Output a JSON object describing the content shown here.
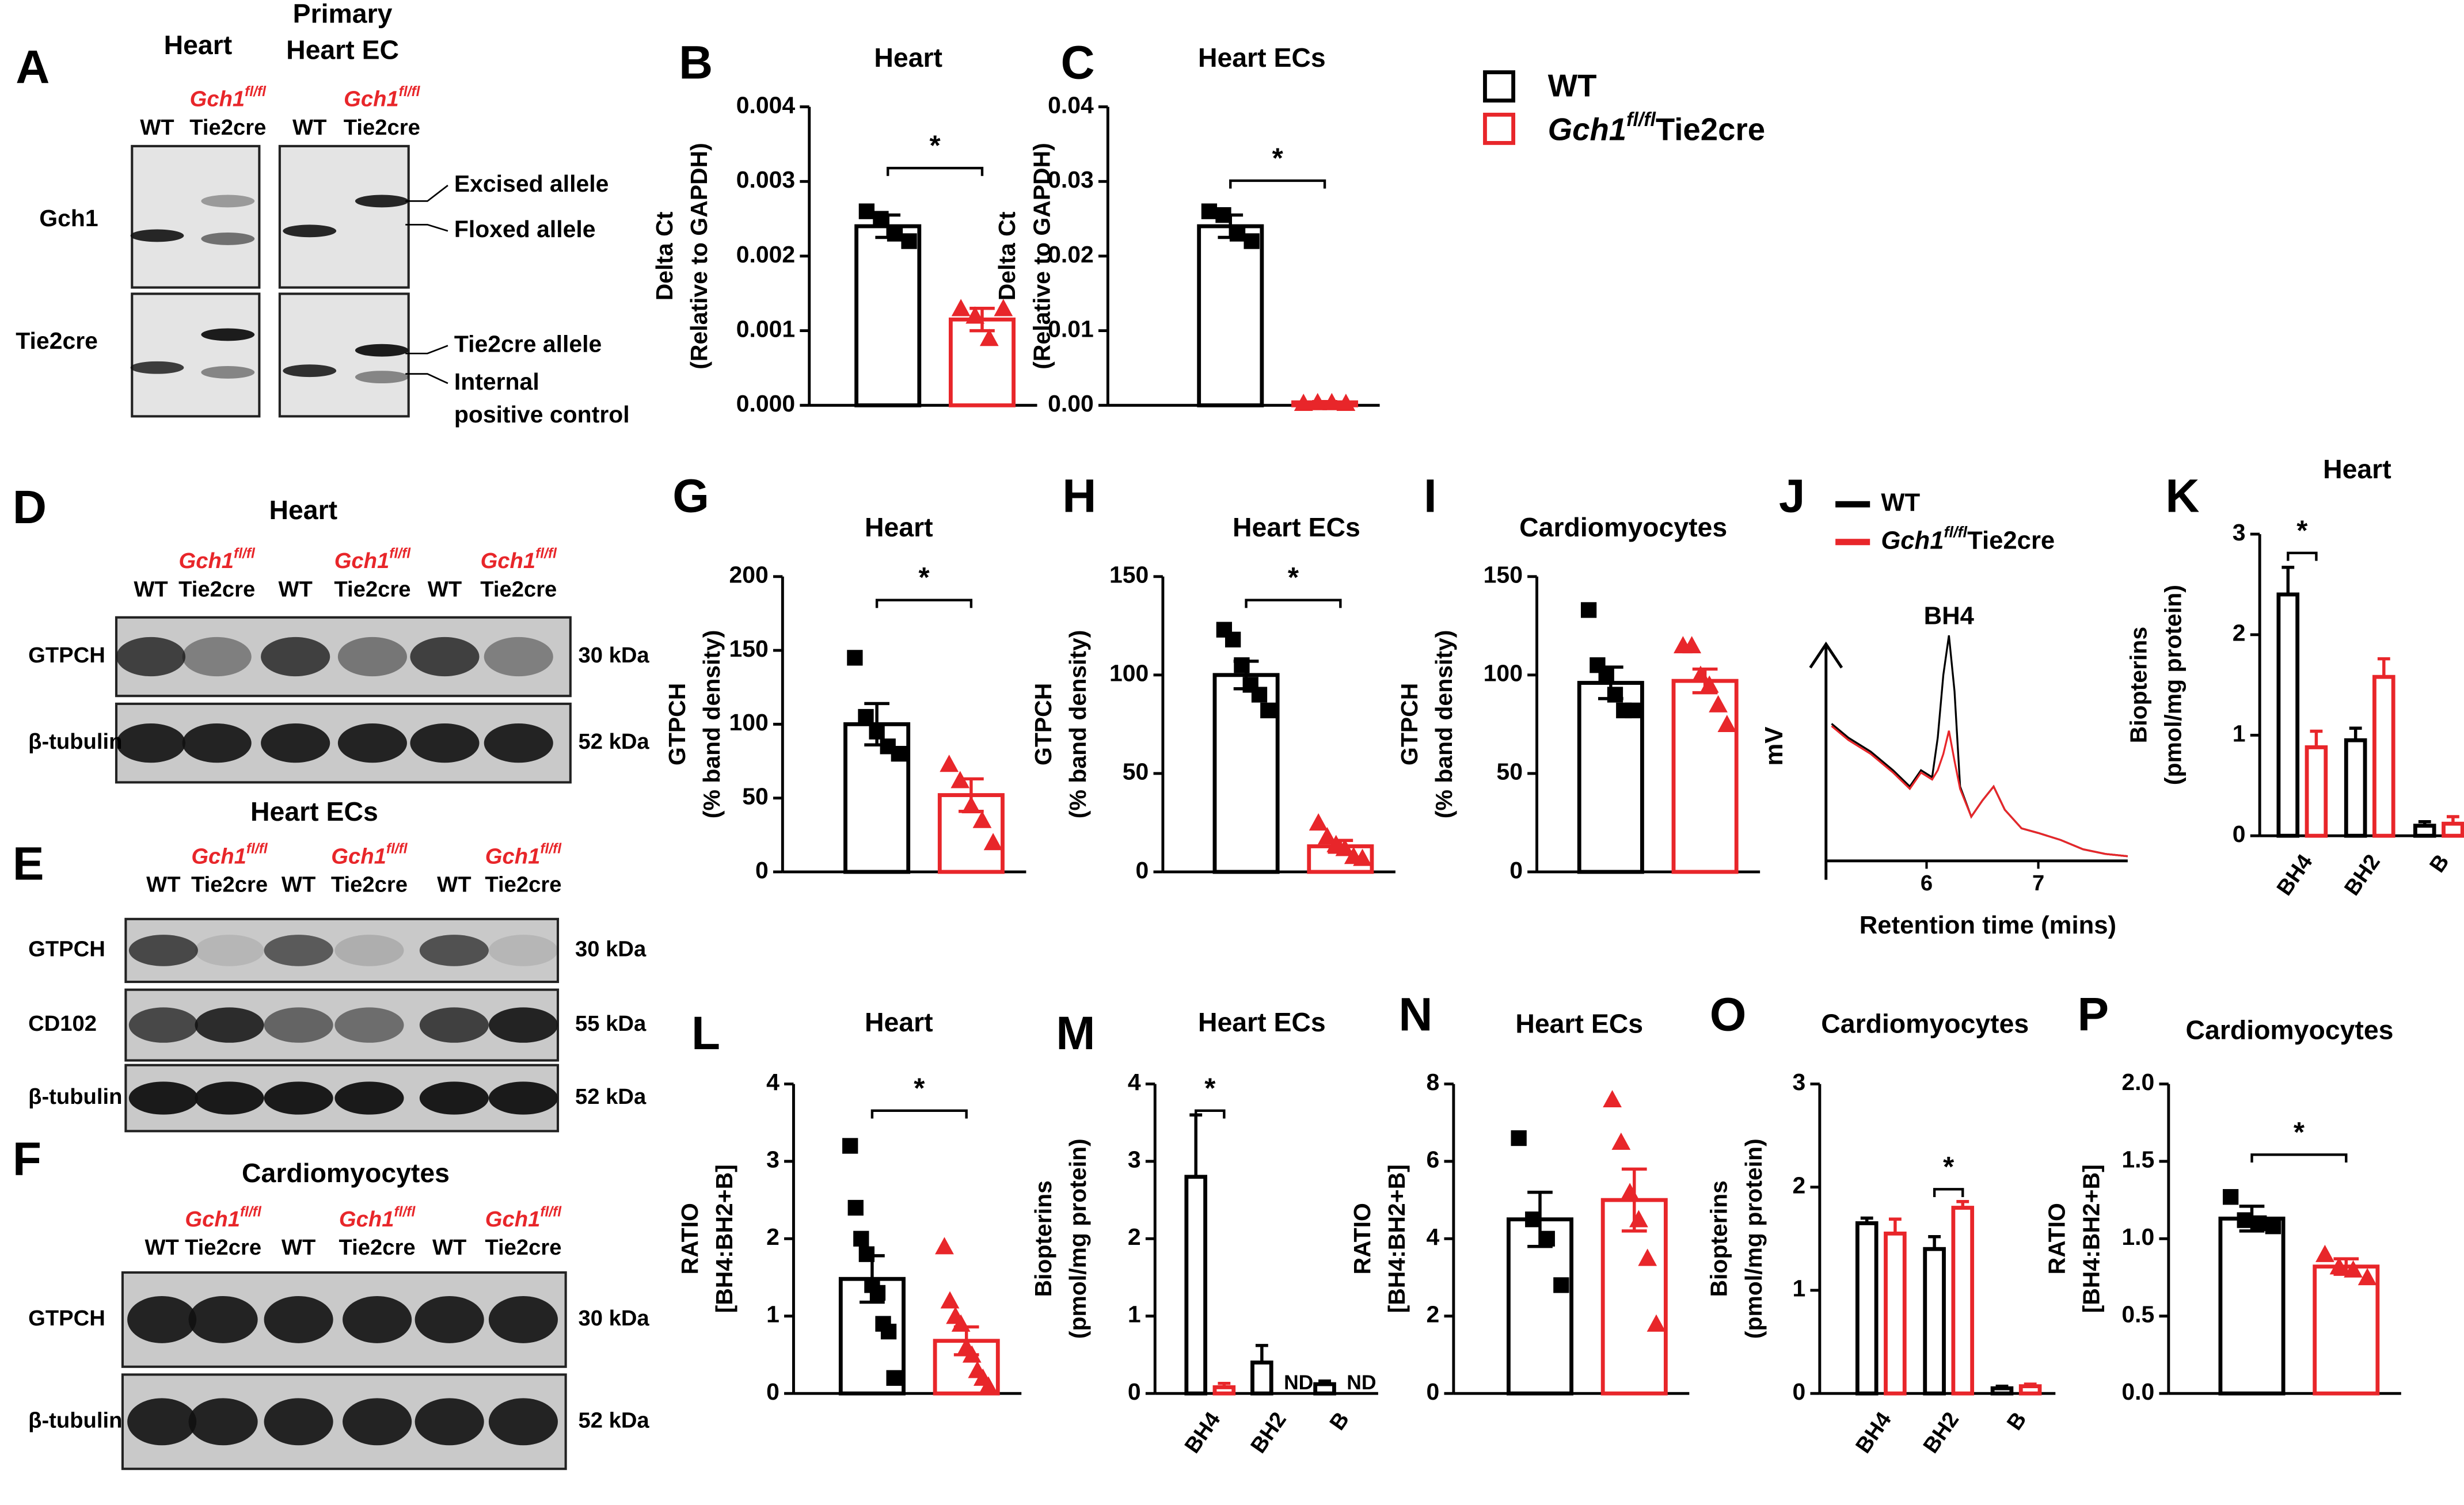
{
  "legend": [
    {
      "name": "WT",
      "color": "#000000"
    },
    {
      "name": {
        "gene": "Gch1",
        "sup": "fl/fl",
        "suffix": "Tie2cre"
      },
      "color": "#e8262a"
    }
  ],
  "gels": [
    {
      "letter": "A",
      "groups": [
        {
          "title": [
            "Heart"
          ],
          "lanes": [
            {
              "label": "WT"
            },
            {
              "gene": "Gch1",
              "sup": "fl/fl",
              "line2": "Tie2cre"
            }
          ]
        },
        {
          "title": [
            "Primary",
            "Heart EC"
          ],
          "lanes": [
            {
              "label": "WT"
            },
            {
              "gene": "Gch1",
              "sup": "fl/fl",
              "line2": "Tie2cre"
            }
          ]
        }
      ],
      "rows": [
        "Gch1",
        "Tie2cre"
      ],
      "annotations": [
        "Excised allele",
        "Floxed allele",
        "Tie2cre allele",
        "Internal",
        "positive control"
      ]
    },
    {
      "letter": "D",
      "title": "Heart",
      "lanes": [
        {
          "label": "WT"
        },
        {
          "gene": "Gch1",
          "sup": "fl/fl",
          "line2": "Tie2cre"
        },
        {
          "label": "WT"
        },
        {
          "gene": "Gch1",
          "sup": "fl/fl",
          "line2": "Tie2cre"
        },
        {
          "label": "WT"
        },
        {
          "gene": "Gch1",
          "sup": "fl/fl",
          "line2": "Tie2cre"
        }
      ],
      "rows": [
        {
          "label": "GTPCH",
          "size": "30 kDa"
        },
        {
          "label": "β-tubulin",
          "size": "52 kDa"
        }
      ]
    },
    {
      "letter": "E",
      "title": "Heart ECs",
      "lanes": [
        {
          "label": "WT"
        },
        {
          "gene": "Gch1",
          "sup": "fl/fl",
          "line2": "Tie2cre"
        },
        {
          "label": "WT"
        },
        {
          "gene": "Gch1",
          "sup": "fl/fl",
          "line2": "Tie2cre"
        },
        {
          "label": "WT"
        },
        {
          "gene": "Gch1",
          "sup": "fl/fl",
          "line2": "Tie2cre"
        }
      ],
      "rows": [
        {
          "label": "GTPCH",
          "size": "30 kDa"
        },
        {
          "label": "CD102",
          "size": "55 kDa"
        },
        {
          "label": "β-tubulin",
          "size": "52 kDa"
        }
      ]
    },
    {
      "letter": "F",
      "title": "Cardiomyocytes",
      "lanes": [
        {
          "label": "WT"
        },
        {
          "gene": "Gch1",
          "sup": "fl/fl",
          "line2": "Tie2cre"
        },
        {
          "label": "WT"
        },
        {
          "gene": "Gch1",
          "sup": "fl/fl",
          "line2": "Tie2cre"
        },
        {
          "label": "WT"
        },
        {
          "gene": "Gch1",
          "sup": "fl/fl",
          "line2": "Tie2cre"
        }
      ],
      "rows": [
        {
          "label": "GTPCH",
          "size": "30 kDa"
        },
        {
          "label": "β-tubulin",
          "size": "52 kDa"
        }
      ]
    }
  ],
  "chart_data": [
    {
      "type": "bar",
      "panel": "B",
      "title": "Heart",
      "y_label": [
        "Delta Ct",
        "(Relative to GAPDH)"
      ],
      "ylim": [
        0,
        0.004
      ],
      "yticks": [
        {
          "value": 0,
          "label": "0.000"
        },
        0.001,
        0.002,
        0.003,
        0.004
      ],
      "series": [
        {
          "color": "#000000",
          "marker": "square",
          "values": [
            0.0024
          ],
          "errors": [
            0.00015
          ],
          "points": [
            [
              0.0026,
              0.0025,
              0.0023,
              0.0022
            ]
          ]
        },
        {
          "color": "#e8262a",
          "marker": "triangle",
          "values": [
            0.00115
          ],
          "errors": [
            0.00015
          ],
          "points": [
            [
              0.0013,
              0.0012,
              0.0009,
              0.0013
            ]
          ]
        }
      ],
      "significance": [
        {
          "label": "*"
        }
      ]
    },
    {
      "type": "bar",
      "panel": "C",
      "title": "Heart ECs",
      "y_label": [
        "Delta Ct",
        "(Relative to GAPDH)"
      ],
      "ylim": [
        0,
        0.04
      ],
      "yticks": [
        {
          "value": 0,
          "label": "0.00"
        },
        0.01,
        0.02,
        0.03,
        0.04
      ],
      "series": [
        {
          "color": "#000000",
          "marker": "square",
          "values": [
            0.024
          ],
          "errors": [
            0.0015
          ],
          "points": [
            [
              0.026,
              0.0255,
              0.023,
              0.022
            ]
          ]
        },
        {
          "color": "#e8262a",
          "marker": "triangle",
          "values": [
            0.0004
          ],
          "errors": [
            0.0001
          ],
          "points": [
            [
              0.0003,
              0.0004,
              0.0004,
              0.0003
            ]
          ]
        }
      ],
      "significance": [
        {
          "label": "*"
        }
      ]
    },
    {
      "type": "bar",
      "panel": "G",
      "title": "Heart",
      "y_label": [
        "GTPCH",
        "(% band density)"
      ],
      "ylim": [
        0,
        200
      ],
      "yticks": [
        0,
        50,
        100,
        150,
        200
      ],
      "series": [
        {
          "color": "#000000",
          "marker": "square",
          "values": [
            100
          ],
          "errors": [
            14
          ],
          "points": [
            [
              145,
              105,
              95,
              85,
              80
            ]
          ]
        },
        {
          "color": "#e8262a",
          "marker": "triangle",
          "values": [
            52
          ],
          "errors": [
            11
          ],
          "points": [
            [
              73,
              62,
              45,
              35,
              20
            ]
          ]
        }
      ],
      "significance": [
        {
          "label": "*"
        }
      ]
    },
    {
      "type": "bar",
      "panel": "H",
      "title": "Heart ECs",
      "y_label": [
        "GTPCH",
        "(% band density)"
      ],
      "ylim": [
        0,
        150
      ],
      "yticks": [
        0,
        50,
        100,
        150
      ],
      "series": [
        {
          "color": "#000000",
          "marker": "square",
          "values": [
            100
          ],
          "errors": [
            7
          ],
          "points": [
            [
              123,
              118,
              105,
              95,
              90,
              82
            ]
          ]
        },
        {
          "color": "#e8262a",
          "marker": "triangle",
          "values": [
            13
          ],
          "errors": [
            3
          ],
          "points": [
            [
              25,
              18,
              14,
              12,
              8,
              7
            ]
          ]
        }
      ],
      "significance": [
        {
          "label": "*"
        }
      ]
    },
    {
      "type": "bar",
      "panel": "I",
      "title": "Cardiomyocytes",
      "y_label": [
        "GTPCH",
        "(% band density)"
      ],
      "ylim": [
        0,
        150
      ],
      "yticks": [
        0,
        50,
        100,
        150
      ],
      "series": [
        {
          "color": "#000000",
          "marker": "square",
          "values": [
            96
          ],
          "errors": [
            8
          ],
          "points": [
            [
              133,
              105,
              100,
              90,
              82,
              82
            ]
          ]
        },
        {
          "color": "#e8262a",
          "marker": "triangle",
          "values": [
            97
          ],
          "errors": [
            6
          ],
          "points": [
            [
              115,
              115,
              100,
              95,
              85,
              75
            ]
          ]
        }
      ]
    },
    {
      "type": "line",
      "panel": "J",
      "y_label": "mV",
      "x_label": "Retention time (mins)",
      "annotation": "BH4",
      "xlim": [
        5.1,
        7.8
      ],
      "xticks": [
        6,
        7
      ],
      "ylim": [
        0,
        100
      ],
      "x": [
        5.15,
        5.3,
        5.5,
        5.7,
        5.85,
        5.95,
        6.05,
        6.1,
        6.15,
        6.2,
        6.25,
        6.3,
        6.4,
        6.5,
        6.6,
        6.7,
        6.85,
        7.0,
        7.2,
        7.4,
        7.6,
        7.8
      ],
      "series": [
        {
          "name": "WT",
          "color": "#000000",
          "values": [
            59,
            53,
            47,
            39,
            32,
            39,
            36,
            53,
            80,
            97,
            73,
            32,
            19,
            26,
            32,
            22,
            14,
            12,
            9,
            5,
            3,
            2
          ]
        },
        {
          "name": {
            "gene": "Gch1",
            "sup": "fl/fl",
            "suffix": "Tie2cre"
          },
          "color": "#e8262a",
          "values": [
            58,
            52,
            46,
            38,
            31,
            38,
            35,
            39,
            46,
            56,
            43,
            31,
            19,
            26,
            32,
            22,
            14,
            12,
            9,
            5,
            3,
            2
          ]
        }
      ]
    },
    {
      "type": "bar",
      "panel": "K",
      "title": "Heart",
      "y_label": [
        "Biopterins",
        "(pmol/mg protein)"
      ],
      "ylim": [
        0,
        3
      ],
      "yticks": [
        0,
        1,
        2,
        3
      ],
      "categories": [
        "BH4",
        "BH2",
        "B"
      ],
      "series": [
        {
          "color": "#000000",
          "values": [
            2.4,
            0.95,
            0.1
          ],
          "errors": [
            0.27,
            0.12,
            0.04
          ]
        },
        {
          "color": "#e8262a",
          "values": [
            0.88,
            1.58,
            0.12
          ],
          "errors": [
            0.16,
            0.18,
            0.07
          ]
        }
      ],
      "significance": [
        {
          "category": "BH4",
          "label": "*"
        }
      ]
    },
    {
      "type": "bar",
      "panel": "L",
      "title": "Heart",
      "y_label": [
        "RATIO",
        "[BH4:BH2+B]"
      ],
      "ylim": [
        0,
        4
      ],
      "yticks": [
        0,
        1,
        2,
        3,
        4
      ],
      "series": [
        {
          "color": "#000000",
          "marker": "square",
          "values": [
            1.48
          ],
          "errors": [
            0.3
          ],
          "points": [
            [
              3.2,
              2.4,
              2.0,
              1.8,
              1.4,
              1.3,
              0.9,
              0.8,
              0.2
            ]
          ]
        },
        {
          "color": "#e8262a",
          "marker": "triangle",
          "values": [
            0.68
          ],
          "errors": [
            0.18
          ],
          "points": [
            [
              1.9,
              1.2,
              1.0,
              0.9,
              0.6,
              0.5,
              0.3,
              0.2,
              0.1
            ]
          ]
        }
      ],
      "significance": [
        {
          "label": "*"
        }
      ]
    },
    {
      "type": "bar",
      "panel": "M",
      "title": "Heart ECs",
      "y_label": [
        "Biopterins",
        "(pmol/mg protein)"
      ],
      "ylim": [
        0,
        4
      ],
      "yticks": [
        0,
        1,
        2,
        3,
        4
      ],
      "categories": [
        "BH4",
        "BH2",
        "B"
      ],
      "series": [
        {
          "color": "#000000",
          "values": [
            2.8,
            0.4,
            0.12
          ],
          "errors": [
            0.8,
            0.22,
            0.04
          ]
        },
        {
          "color": "#e8262a",
          "values": [
            0.08,
            null,
            null
          ],
          "errors": [
            0.05,
            null,
            null
          ],
          "value_labels": [
            null,
            "ND",
            "ND"
          ]
        }
      ],
      "significance": [
        {
          "category": "BH4",
          "label": "*"
        }
      ]
    },
    {
      "type": "bar",
      "panel": "N",
      "title": "Heart ECs",
      "y_label": [
        "RATIO",
        "[BH4:BH2+B]"
      ],
      "ylim": [
        0,
        8
      ],
      "yticks": [
        0,
        2,
        4,
        6,
        8
      ],
      "series": [
        {
          "color": "#000000",
          "marker": "square",
          "values": [
            4.5
          ],
          "errors": [
            0.7
          ],
          "points": [
            [
              6.6,
              4.5,
              4.0,
              2.8
            ]
          ]
        },
        {
          "color": "#e8262a",
          "marker": "triangle",
          "values": [
            5.0
          ],
          "errors": [
            0.8
          ],
          "points": [
            [
              7.6,
              6.5,
              5.2,
              4.5,
              3.5,
              1.8
            ]
          ]
        }
      ]
    },
    {
      "type": "bar",
      "panel": "O",
      "title": "Cardiomyocytes",
      "y_label": [
        "Biopterins",
        "(pmol/mg protein)"
      ],
      "ylim": [
        0,
        3
      ],
      "yticks": [
        0,
        1,
        2,
        3
      ],
      "categories": [
        "BH4",
        "BH2",
        "B"
      ],
      "series": [
        {
          "color": "#000000",
          "values": [
            1.65,
            1.4,
            0.05
          ],
          "errors": [
            0.05,
            0.12,
            0.02
          ]
        },
        {
          "color": "#e8262a",
          "values": [
            1.55,
            1.8,
            0.07
          ],
          "errors": [
            0.14,
            0.06,
            0.02
          ]
        }
      ],
      "significance": [
        {
          "category": "BH2",
          "label": "*"
        }
      ]
    },
    {
      "type": "bar",
      "panel": "P",
      "title": "Cardiomyocytes",
      "y_label": [
        "RATIO",
        "[BH4:BH2+B]"
      ],
      "ylim": [
        0,
        2
      ],
      "yticks": [
        {
          "value": 0,
          "label": "0.0"
        },
        0.5,
        {
          "value": 1,
          "label": "1.0"
        },
        1.5,
        {
          "value": 2,
          "label": "2.0"
        }
      ],
      "series": [
        {
          "color": "#000000",
          "marker": "square",
          "values": [
            1.13
          ],
          "errors": [
            0.08
          ],
          "points": [
            [
              1.27,
              1.12,
              1.1,
              1.08
            ]
          ]
        },
        {
          "color": "#e8262a",
          "marker": "triangle",
          "values": [
            0.82
          ],
          "errors": [
            0.05
          ],
          "points": [
            [
              0.9,
              0.82,
              0.8,
              0.75
            ]
          ]
        }
      ],
      "significance": [
        {
          "label": "*"
        }
      ]
    }
  ]
}
